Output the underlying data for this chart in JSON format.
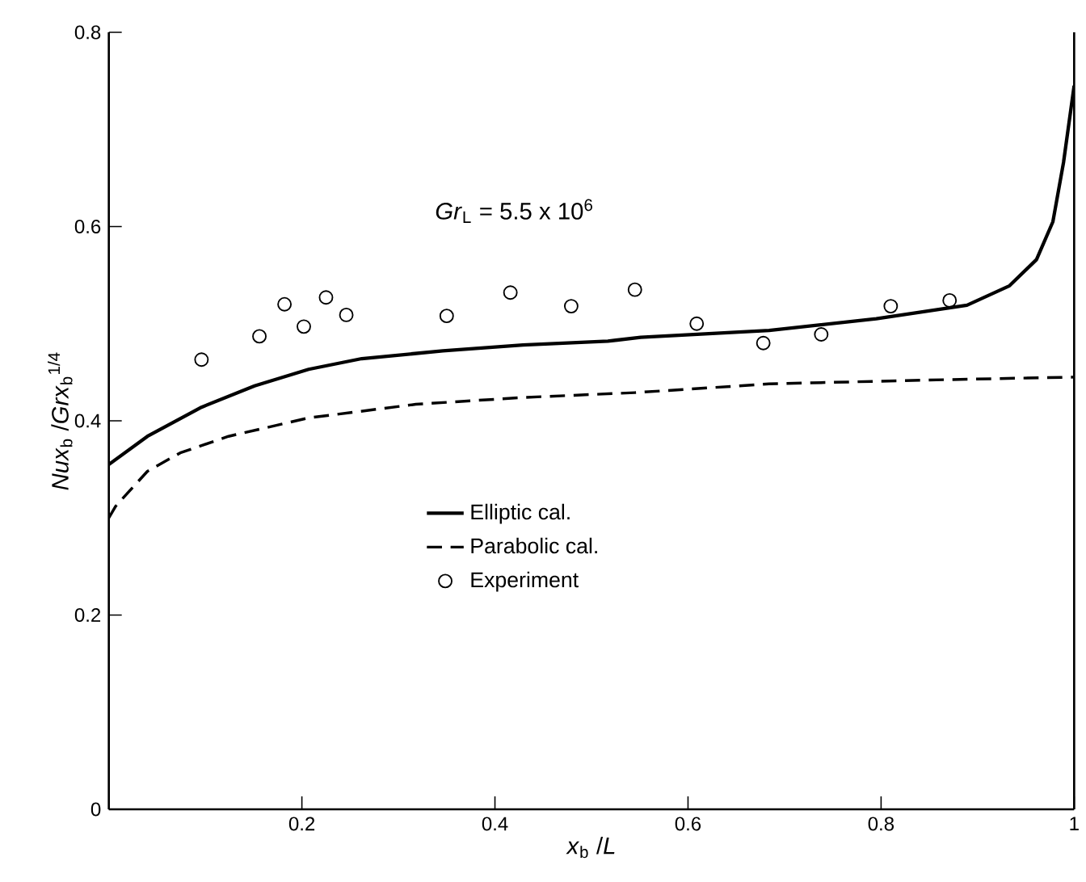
{
  "chart_data": {
    "type": "line",
    "xlabel": "*x*$_{b}$ /*L*",
    "ylabel": "*Nux*$_{b}$ /*Grx*$_{b}$$^{1/4}$",
    "annotations": [
      "*Gr*$_{L}$ = 5.5 x 10$^{6}$"
    ],
    "xlim": [
      0,
      1
    ],
    "ylim": [
      0,
      0.8
    ],
    "xticks": [
      0.2,
      0.4,
      0.6,
      0.8,
      1
    ],
    "yticks": [
      0,
      0.2,
      0.4,
      0.6,
      0.8
    ],
    "grid": false,
    "legend": "bottom",
    "series": [
      {
        "name": "Elliptic cal.",
        "color": "#000000",
        "line_style": "solid",
        "marker": "none",
        "x": [
          0,
          0.04,
          0.096,
          0.151,
          0.207,
          0.262,
          0.346,
          0.429,
          0.517,
          0.551,
          0.684,
          0.795,
          0.889,
          0.933,
          0.961,
          0.978,
          0.989,
          1.0
        ],
        "values": [
          0.355,
          0.384,
          0.414,
          0.436,
          0.453,
          0.464,
          0.472,
          0.478,
          0.482,
          0.486,
          0.493,
          0.505,
          0.519,
          0.539,
          0.566,
          0.605,
          0.666,
          0.745
        ]
      },
      {
        "name": "Parabolic cal.",
        "color": "#000000",
        "line_style": "dashed",
        "marker": "none",
        "x": [
          0,
          0.007,
          0.04,
          0.074,
          0.124,
          0.207,
          0.318,
          0.429,
          0.545,
          0.684,
          0.85,
          1.0
        ],
        "values": [
          0.3,
          0.312,
          0.348,
          0.367,
          0.384,
          0.403,
          0.417,
          0.424,
          0.429,
          0.438,
          0.442,
          0.445
        ]
      },
      {
        "name": "Experiment",
        "type": "scatter",
        "color": "#000000",
        "marker": "circle",
        "x": [
          0.096,
          0.156,
          0.182,
          0.202,
          0.225,
          0.246,
          0.35,
          0.416,
          0.479,
          0.545,
          0.609,
          0.678,
          0.738,
          0.81,
          0.871
        ],
        "values": [
          0.463,
          0.487,
          0.52,
          0.497,
          0.527,
          0.509,
          0.508,
          0.532,
          0.518,
          0.535,
          0.5,
          0.48,
          0.489,
          0.518,
          0.524
        ]
      }
    ]
  }
}
